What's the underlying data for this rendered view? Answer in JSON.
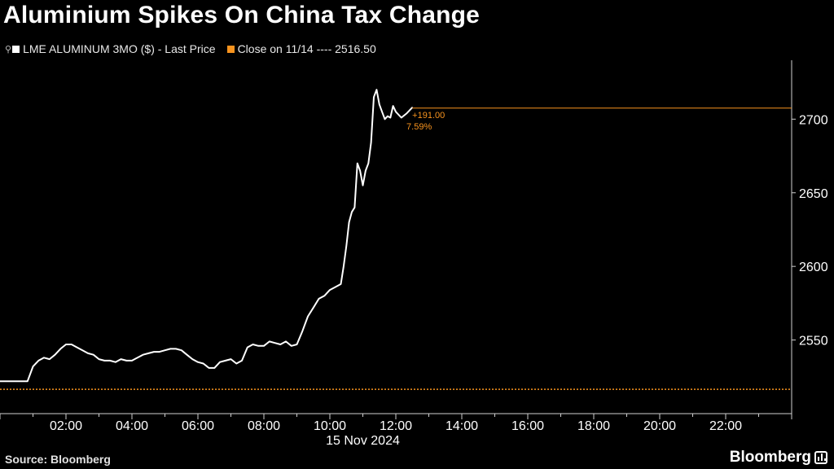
{
  "title": "Aluminium Spikes On China Tax Change",
  "legend": {
    "series_label": "LME ALUMINUM 3MO ($) - Last Price",
    "reference_label": "Close on 11/14 ---- 2516.50"
  },
  "source": "Source: Bloomberg",
  "brand": "Bloomberg",
  "colors": {
    "background": "#000000",
    "line": "#ffffff",
    "reference": "#f7931e",
    "axis": "#cfcfcf"
  },
  "chart_data": {
    "type": "line",
    "title": "Aluminium Spikes On China Tax Change",
    "date_label": "15 Nov 2024",
    "xlabel": "",
    "ylabel": "",
    "xlim": [
      "00:00",
      "24:00"
    ],
    "ylim": [
      2500,
      2740
    ],
    "y_axis_side": "right",
    "grid": false,
    "x_tick_labels": [
      "02:00",
      "04:00",
      "06:00",
      "08:00",
      "10:00",
      "12:00",
      "14:00",
      "16:00",
      "18:00",
      "20:00",
      "22:00"
    ],
    "y_tick_labels": [
      "2550",
      "2600",
      "2650",
      "2700"
    ],
    "series": [
      {
        "name": "LME ALUMINUM 3MO ($) - Last Price",
        "x": [
          "00:00",
          "00:50",
          "01:00",
          "01:10",
          "01:20",
          "01:30",
          "01:40",
          "01:50",
          "02:00",
          "02:10",
          "02:20",
          "02:30",
          "02:40",
          "02:50",
          "03:00",
          "03:10",
          "03:20",
          "03:30",
          "03:40",
          "03:50",
          "04:00",
          "04:10",
          "04:20",
          "04:30",
          "04:40",
          "04:50",
          "05:00",
          "05:10",
          "05:20",
          "05:30",
          "05:40",
          "05:50",
          "06:00",
          "06:10",
          "06:20",
          "06:30",
          "06:40",
          "06:50",
          "07:00",
          "07:10",
          "07:20",
          "07:30",
          "07:40",
          "07:50",
          "08:00",
          "08:10",
          "08:20",
          "08:30",
          "08:40",
          "08:50",
          "09:00",
          "09:10",
          "09:20",
          "09:30",
          "09:40",
          "09:50",
          "10:00",
          "10:10",
          "10:20",
          "10:25",
          "10:30",
          "10:35",
          "10:40",
          "10:45",
          "10:50",
          "10:55",
          "11:00",
          "11:05",
          "11:10",
          "11:15",
          "11:20",
          "11:25",
          "11:30",
          "11:35",
          "11:40",
          "11:45",
          "11:50",
          "11:55",
          "12:00",
          "12:10",
          "12:20",
          "12:30"
        ],
        "y": [
          2522,
          2522,
          2532,
          2536,
          2538,
          2537,
          2540,
          2544,
          2547,
          2547,
          2545,
          2543,
          2541,
          2540,
          2537,
          2536,
          2536,
          2535,
          2537,
          2536,
          2536,
          2538,
          2540,
          2541,
          2542,
          2542,
          2543,
          2544,
          2544,
          2543,
          2540,
          2537,
          2535,
          2534,
          2531,
          2531,
          2535,
          2536,
          2537,
          2534,
          2536,
          2545,
          2547,
          2546,
          2546,
          2549,
          2548,
          2547,
          2549,
          2546,
          2547,
          2556,
          2566,
          2572,
          2578,
          2580,
          2584,
          2586,
          2588,
          2600,
          2614,
          2630,
          2637,
          2640,
          2670,
          2665,
          2655,
          2665,
          2670,
          2684,
          2715,
          2720,
          2710,
          2705,
          2700,
          2702,
          2701,
          2709,
          2705,
          2701,
          2704,
          2708
        ]
      }
    ],
    "reference_line": {
      "label": "Close on 11/14",
      "value": 2516.5
    },
    "last_value": 2707.5,
    "annotations": [
      {
        "text": "+191.00"
      },
      {
        "text": "7.59%"
      }
    ]
  }
}
